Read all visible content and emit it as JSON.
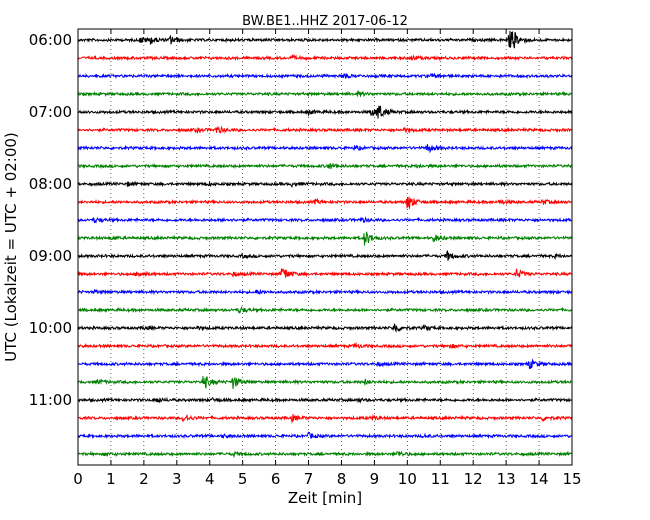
{
  "chart_data": {
    "type": "line",
    "title": "BW.BE1..HHZ 2017-06-12",
    "xlabel": "Zeit  [min]",
    "ylabel": "UTC (Lokalzeit = UTC + 02:00)",
    "xlim": [
      0,
      15
    ],
    "x_ticks": [
      "0",
      "1",
      "2",
      "3",
      "4",
      "5",
      "6",
      "7",
      "8",
      "9",
      "10",
      "11",
      "12",
      "13",
      "14",
      "15"
    ],
    "y_tick_labels": [
      "06:00",
      "07:00",
      "08:00",
      "09:00",
      "10:00",
      "11:00"
    ],
    "grid": "vertical-dotted",
    "colors": [
      "#000000",
      "#ff0000",
      "#0000ff",
      "#008000"
    ],
    "trace_start_times": [
      "06:00",
      "06:15",
      "06:30",
      "06:45",
      "07:00",
      "07:15",
      "07:30",
      "07:45",
      "08:00",
      "08:15",
      "08:30",
      "08:45",
      "09:00",
      "09:15",
      "09:30",
      "09:45",
      "10:00",
      "10:15",
      "10:30",
      "10:45",
      "11:00",
      "11:15",
      "11:30",
      "11:45"
    ],
    "events": [
      [
        [
          1.9,
          0.35
        ],
        [
          2.2,
          0.35
        ],
        [
          2.8,
          0.5
        ],
        [
          13.1,
          1.0
        ],
        [
          13.2,
          0.6
        ]
      ],
      [
        [
          6.5,
          0.2
        ],
        [
          10.1,
          0.25
        ]
      ],
      [
        [
          8.0,
          0.3
        ],
        [
          10.7,
          0.2
        ]
      ],
      [
        [
          8.5,
          0.25
        ]
      ],
      [
        [
          7.0,
          0.2
        ],
        [
          9.1,
          0.9
        ],
        [
          8.9,
          0.4
        ]
      ],
      [
        [
          4.2,
          0.4
        ],
        [
          3.6,
          0.2
        ],
        [
          9.9,
          0.2
        ]
      ],
      [
        [
          10.6,
          0.5
        ],
        [
          8.4,
          0.2
        ],
        [
          15.0,
          0.15
        ]
      ],
      [
        [
          7.6,
          0.35
        ],
        [
          10.3,
          0.15
        ]
      ],
      [
        [
          1.5,
          0.2
        ],
        [
          3.9,
          0.15
        ],
        [
          6.5,
          0.2
        ]
      ],
      [
        [
          10.0,
          1.0
        ],
        [
          7.2,
          0.2
        ],
        [
          12.8,
          0.2
        ],
        [
          14.1,
          0.25
        ]
      ],
      [
        [
          0.5,
          0.25
        ],
        [
          4.4,
          0.15
        ],
        [
          8.6,
          0.2
        ]
      ],
      [
        [
          8.7,
          0.9
        ],
        [
          10.8,
          0.4
        ],
        [
          1.0,
          0.15
        ]
      ],
      [
        [
          11.2,
          0.55
        ],
        [
          14.5,
          0.15
        ],
        [
          5.0,
          0.15
        ]
      ],
      [
        [
          6.2,
          0.9
        ],
        [
          1.8,
          0.4
        ],
        [
          4.7,
          0.2
        ],
        [
          13.3,
          0.55
        ]
      ],
      [
        [
          5.4,
          0.2
        ],
        [
          0.5,
          0.15
        ]
      ],
      [
        [
          4.9,
          0.35
        ]
      ],
      [
        [
          9.6,
          0.6
        ],
        [
          3.6,
          0.15
        ],
        [
          10.5,
          0.2
        ],
        [
          2.0,
          0.15
        ]
      ],
      [
        [
          8.4,
          0.25
        ],
        [
          11.3,
          0.2
        ]
      ],
      [
        [
          13.7,
          0.55
        ],
        [
          9.1,
          0.15
        ]
      ],
      [
        [
          3.8,
          0.85
        ],
        [
          4.7,
          0.7
        ],
        [
          0.6,
          0.2
        ],
        [
          8.7,
          0.2
        ]
      ],
      [
        [
          2.4,
          0.25
        ],
        [
          4.1,
          0.2
        ],
        [
          8.5,
          0.15
        ]
      ],
      [
        [
          3.2,
          0.45
        ],
        [
          6.5,
          0.35
        ],
        [
          8.9,
          0.2
        ],
        [
          14.1,
          0.3
        ]
      ],
      [
        [
          7.0,
          0.3
        ],
        [
          4.4,
          0.15
        ],
        [
          10.5,
          0.15
        ]
      ],
      [
        [
          9.7,
          0.3
        ],
        [
          4.7,
          0.2
        ],
        [
          0.8,
          0.15
        ]
      ]
    ]
  }
}
